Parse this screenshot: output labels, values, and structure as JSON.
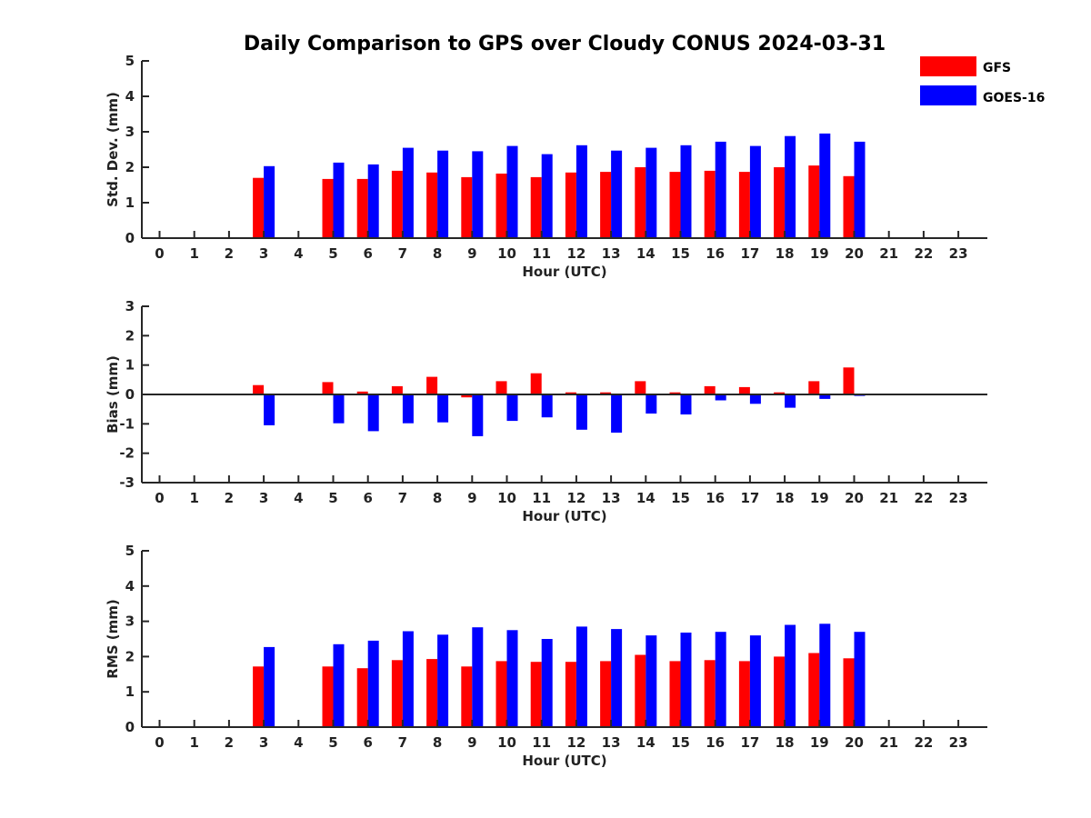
{
  "title": "Daily Comparison to GPS over Cloudy CONUS 2024-03-31",
  "legend": [
    {
      "name": "GFS",
      "color": "#ff0000"
    },
    {
      "name": "GOES-16",
      "color": "#0000ff"
    }
  ],
  "chart_data": [
    {
      "type": "bar",
      "id": "stddev",
      "xlabel": "Hour (UTC)",
      "ylabel": "Std. Dev. (mm)",
      "ylim": [
        0,
        5
      ],
      "yticks": [
        0,
        1,
        2,
        3,
        4,
        5
      ],
      "categories": [
        "0",
        "1",
        "2",
        "3",
        "4",
        "5",
        "6",
        "7",
        "8",
        "9",
        "10",
        "11",
        "12",
        "13",
        "14",
        "15",
        "16",
        "17",
        "18",
        "19",
        "20",
        "21",
        "22",
        "23"
      ],
      "series": [
        {
          "name": "GFS",
          "values": [
            null,
            null,
            null,
            1.7,
            null,
            1.67,
            1.67,
            1.9,
            1.85,
            1.72,
            1.82,
            1.72,
            1.85,
            1.87,
            2.0,
            1.87,
            1.9,
            1.87,
            2.0,
            2.05,
            1.75,
            null,
            null,
            null
          ]
        },
        {
          "name": "GOES-16",
          "values": [
            null,
            null,
            null,
            2.03,
            null,
            2.13,
            2.08,
            2.55,
            2.47,
            2.45,
            2.6,
            2.37,
            2.62,
            2.47,
            2.55,
            2.62,
            2.72,
            2.6,
            2.88,
            2.95,
            2.72,
            null,
            null,
            null
          ]
        }
      ]
    },
    {
      "type": "bar",
      "id": "bias",
      "xlabel": "Hour (UTC)",
      "ylabel": "Bias (mm)",
      "ylim": [
        -3,
        3
      ],
      "yticks": [
        -3,
        -2,
        -1,
        0,
        1,
        2,
        3
      ],
      "zero_line": true,
      "categories": [
        "0",
        "1",
        "2",
        "3",
        "4",
        "5",
        "6",
        "7",
        "8",
        "9",
        "10",
        "11",
        "12",
        "13",
        "14",
        "15",
        "16",
        "17",
        "18",
        "19",
        "20",
        "21",
        "22",
        "23"
      ],
      "series": [
        {
          "name": "GFS",
          "values": [
            null,
            null,
            null,
            0.32,
            null,
            0.42,
            0.1,
            0.28,
            0.6,
            -0.1,
            0.45,
            0.72,
            0.07,
            0.07,
            0.45,
            0.07,
            0.28,
            0.25,
            0.07,
            0.45,
            0.92,
            null,
            null,
            null
          ]
        },
        {
          "name": "GOES-16",
          "values": [
            null,
            null,
            null,
            -1.05,
            null,
            -0.98,
            -1.25,
            -0.98,
            -0.95,
            -1.42,
            -0.9,
            -0.78,
            -1.2,
            -1.3,
            -0.65,
            -0.68,
            -0.2,
            -0.32,
            -0.45,
            -0.15,
            -0.05,
            null,
            null,
            null
          ]
        }
      ]
    },
    {
      "type": "bar",
      "id": "rms",
      "xlabel": "Hour (UTC)",
      "ylabel": "RMS (mm)",
      "ylim": [
        0,
        5
      ],
      "yticks": [
        0,
        1,
        2,
        3,
        4,
        5
      ],
      "categories": [
        "0",
        "1",
        "2",
        "3",
        "4",
        "5",
        "6",
        "7",
        "8",
        "9",
        "10",
        "11",
        "12",
        "13",
        "14",
        "15",
        "16",
        "17",
        "18",
        "19",
        "20",
        "21",
        "22",
        "23"
      ],
      "series": [
        {
          "name": "GFS",
          "values": [
            null,
            null,
            null,
            1.72,
            null,
            1.72,
            1.67,
            1.9,
            1.93,
            1.72,
            1.87,
            1.85,
            1.85,
            1.87,
            2.05,
            1.87,
            1.9,
            1.87,
            2.0,
            2.1,
            1.95,
            null,
            null,
            null
          ]
        },
        {
          "name": "GOES-16",
          "values": [
            null,
            null,
            null,
            2.27,
            null,
            2.35,
            2.45,
            2.72,
            2.62,
            2.83,
            2.75,
            2.5,
            2.85,
            2.78,
            2.6,
            2.68,
            2.7,
            2.6,
            2.9,
            2.93,
            2.7,
            null,
            null,
            null
          ]
        }
      ]
    }
  ]
}
